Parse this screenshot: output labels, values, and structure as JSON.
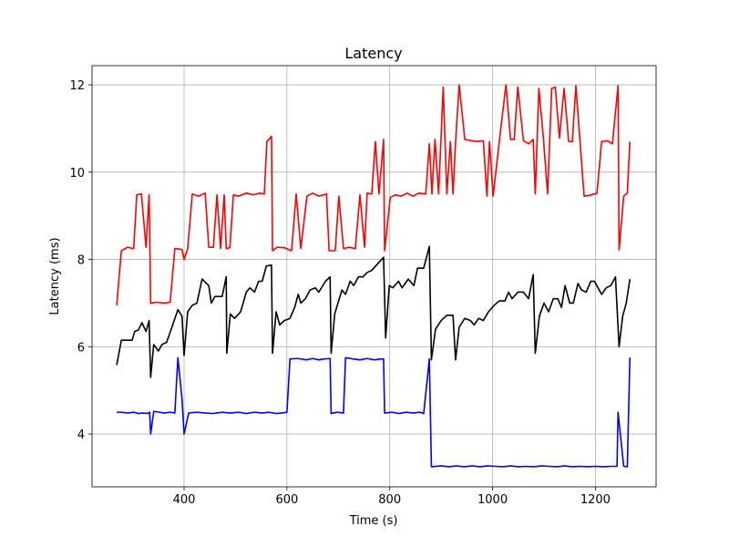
{
  "chart_data": {
    "type": "line",
    "title": "Latency",
    "x_label": "Time (s)",
    "y_label": "Latency (ms)",
    "xlim": [
      221,
      1318
    ],
    "ylim": [
      2.79,
      12.44
    ],
    "xticks": [
      400,
      600,
      800,
      1000,
      1200
    ],
    "yticks": [
      4,
      6,
      8,
      10,
      12
    ],
    "grid": true,
    "series": [
      {
        "color": "#ff0000",
        "x": [
          269,
          278,
          290,
          302,
          308,
          317,
          326,
          332,
          335,
          347,
          361,
          373,
          382,
          396,
          400,
          407,
          416,
          428,
          441,
          448,
          457,
          464,
          471,
          478,
          482,
          489,
          496,
          506,
          521,
          535,
          547,
          556,
          561,
          570,
          572,
          581,
          595,
          609,
          618,
          627,
          639,
          650,
          662,
          677,
          682,
          694,
          701,
          710,
          721,
          733,
          742,
          751,
          756,
          765,
          772,
          779,
          788,
          790,
          801,
          811,
          822,
          834,
          845,
          857,
          870,
          877,
          882,
          888,
          895,
          904,
          911,
          918,
          923,
          928,
          935,
          946,
          960,
          971,
          982,
          989,
          994,
          1001,
          1013,
          1026,
          1035,
          1042,
          1049,
          1060,
          1070,
          1079,
          1083,
          1090,
          1099,
          1107,
          1115,
          1122,
          1130,
          1139,
          1148,
          1155,
          1162,
          1178,
          1189,
          1203,
          1212,
          1223,
          1233,
          1244,
          1246,
          1255,
          1262,
          1267
        ],
        "values": [
          6.95,
          8.2,
          8.28,
          8.25,
          9.48,
          9.5,
          8.28,
          9.48,
          7.0,
          7.02,
          7.0,
          7.02,
          8.25,
          8.23,
          8.0,
          8.25,
          9.5,
          9.45,
          9.52,
          8.28,
          8.28,
          9.48,
          8.25,
          9.48,
          8.25,
          8.27,
          9.48,
          9.45,
          9.52,
          9.48,
          9.52,
          9.5,
          10.7,
          10.82,
          8.2,
          8.28,
          8.27,
          8.2,
          9.5,
          8.25,
          9.45,
          9.52,
          9.45,
          9.5,
          8.2,
          8.2,
          9.45,
          8.25,
          8.28,
          8.25,
          9.48,
          8.28,
          9.52,
          9.5,
          10.7,
          9.5,
          10.75,
          8.2,
          9.42,
          9.48,
          9.45,
          9.52,
          9.45,
          9.52,
          9.5,
          10.65,
          9.5,
          10.75,
          9.5,
          11.95,
          9.5,
          10.7,
          9.5,
          10.7,
          12.0,
          10.75,
          10.72,
          10.7,
          10.72,
          9.45,
          10.7,
          9.45,
          10.7,
          12.0,
          10.75,
          10.75,
          11.95,
          10.72,
          10.65,
          10.75,
          9.5,
          11.92,
          10.75,
          9.5,
          11.92,
          11.95,
          10.78,
          11.92,
          10.7,
          10.7,
          11.98,
          9.45,
          9.47,
          9.52,
          10.7,
          10.72,
          10.65,
          11.98,
          8.22,
          9.45,
          9.52,
          10.7
        ]
      },
      {
        "color": "#000000",
        "x": [
          269,
          278,
          290,
          299,
          304,
          311,
          318,
          326,
          332,
          335,
          341,
          350,
          357,
          366,
          375,
          388,
          396,
          400,
          407,
          416,
          425,
          435,
          448,
          453,
          460,
          474,
          482,
          483,
          490,
          498,
          510,
          521,
          528,
          537,
          545,
          552,
          560,
          570,
          572,
          579,
          586,
          595,
          606,
          615,
          622,
          627,
          636,
          645,
          655,
          662,
          675,
          684,
          686,
          693,
          698,
          707,
          714,
          723,
          730,
          739,
          748,
          756,
          765,
          788,
          792,
          799,
          806,
          817,
          824,
          836,
          847,
          854,
          866,
          877,
          881,
          889,
          900,
          911,
          923,
          928,
          935,
          946,
          957,
          964,
          973,
          982,
          992,
          1003,
          1013,
          1024,
          1031,
          1038,
          1049,
          1060,
          1070,
          1079,
          1083,
          1091,
          1100,
          1109,
          1118,
          1127,
          1134,
          1141,
          1150,
          1157,
          1166,
          1173,
          1182,
          1191,
          1198,
          1205,
          1212,
          1221,
          1230,
          1239,
          1246,
          1253,
          1260,
          1267
        ],
        "values": [
          5.58,
          6.15,
          6.15,
          6.15,
          6.35,
          6.38,
          6.55,
          6.35,
          6.6,
          5.3,
          6.05,
          5.9,
          6.05,
          6.1,
          6.4,
          6.85,
          6.7,
          5.8,
          6.8,
          6.95,
          7.0,
          7.55,
          7.4,
          7.0,
          7.15,
          7.15,
          7.6,
          5.85,
          6.75,
          6.65,
          6.8,
          7.25,
          7.35,
          7.25,
          7.5,
          7.5,
          7.85,
          7.87,
          5.85,
          6.8,
          6.5,
          6.6,
          6.65,
          6.9,
          7.2,
          7.0,
          7.1,
          7.3,
          7.35,
          7.25,
          7.5,
          7.6,
          5.85,
          6.75,
          6.95,
          7.3,
          7.2,
          7.5,
          7.4,
          7.6,
          7.6,
          7.7,
          7.75,
          8.05,
          6.2,
          7.4,
          7.35,
          7.5,
          7.35,
          7.55,
          7.4,
          7.8,
          7.8,
          8.3,
          5.7,
          6.4,
          6.6,
          6.72,
          6.72,
          5.7,
          6.45,
          6.65,
          6.6,
          6.5,
          6.65,
          6.6,
          6.8,
          6.95,
          7.05,
          7.05,
          7.25,
          7.1,
          7.25,
          7.25,
          7.1,
          7.65,
          5.85,
          6.7,
          7.0,
          6.8,
          7.1,
          7.1,
          6.9,
          7.4,
          7.0,
          7.0,
          7.45,
          7.3,
          7.25,
          7.5,
          7.5,
          7.35,
          7.2,
          7.35,
          7.4,
          7.6,
          6.0,
          6.7,
          7.0,
          7.55
        ]
      },
      {
        "color": "#0000ff",
        "x": [
          269,
          278,
          290,
          302,
          311,
          320,
          329,
          333,
          335,
          341,
          352,
          361,
          373,
          382,
          388,
          396,
          400,
          409,
          425,
          441,
          457,
          474,
          490,
          506,
          521,
          537,
          552,
          565,
          579,
          590,
          600,
          606,
          622,
          638,
          650,
          662,
          673,
          684,
          686,
          698,
          710,
          714,
          728,
          742,
          756,
          770,
          784,
          788,
          790,
          804,
          818,
          832,
          846,
          858,
          866,
          877,
          881,
          900,
          915,
          930,
          945,
          960,
          975,
          990,
          1005,
          1020,
          1035,
          1050,
          1065,
          1080,
          1095,
          1110,
          1125,
          1140,
          1155,
          1170,
          1185,
          1200,
          1215,
          1230,
          1242,
          1244,
          1255,
          1262,
          1267
        ],
        "values": [
          4.5,
          4.5,
          4.48,
          4.5,
          4.47,
          4.48,
          4.47,
          4.5,
          4.0,
          4.52,
          4.5,
          4.48,
          4.5,
          4.48,
          5.75,
          4.8,
          4.0,
          4.48,
          4.5,
          4.48,
          4.47,
          4.5,
          4.48,
          4.5,
          4.47,
          4.5,
          4.48,
          4.5,
          4.47,
          4.48,
          4.5,
          5.72,
          5.73,
          5.7,
          5.73,
          5.7,
          5.72,
          5.73,
          4.47,
          4.5,
          4.48,
          5.75,
          5.72,
          5.7,
          5.73,
          5.7,
          5.72,
          5.72,
          4.48,
          4.5,
          4.47,
          4.5,
          4.48,
          4.5,
          4.47,
          5.72,
          3.25,
          3.27,
          3.25,
          3.27,
          3.25,
          3.27,
          3.25,
          3.27,
          3.26,
          3.25,
          3.27,
          3.25,
          3.26,
          3.25,
          3.27,
          3.26,
          3.25,
          3.27,
          3.25,
          3.26,
          3.25,
          3.26,
          3.25,
          3.26,
          3.26,
          4.5,
          3.26,
          3.25,
          5.75
        ]
      }
    ]
  }
}
